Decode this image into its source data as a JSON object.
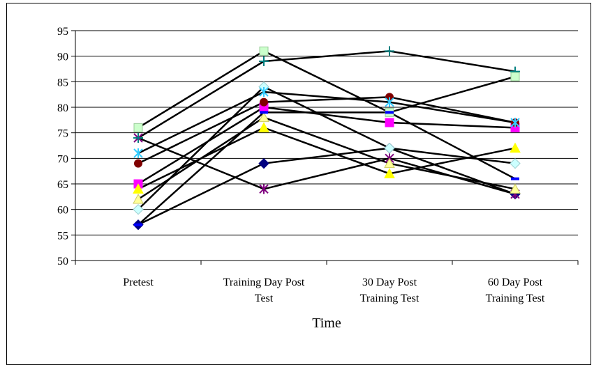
{
  "chart_data": {
    "type": "line",
    "title": "",
    "xlabel": "Time",
    "ylabel": "",
    "ylim": [
      50,
      95
    ],
    "yticks": [
      50,
      55,
      60,
      65,
      70,
      75,
      80,
      85,
      90,
      95
    ],
    "grid": "horizontal",
    "categories": [
      [
        "Pretest"
      ],
      [
        "Training Day Post",
        "Test"
      ],
      [
        "30 Day Post",
        "Training Test"
      ],
      [
        "60 Day Post",
        "Training Test"
      ]
    ],
    "series": [
      {
        "values": [
          57,
          69,
          72,
          63
        ],
        "color": "#000080",
        "marker": "diamond"
      },
      {
        "values": [
          65,
          80,
          77,
          76
        ],
        "color": "#ff00ff",
        "marker": "square"
      },
      {
        "values": [
          64,
          76,
          67,
          72
        ],
        "color": "#ffff00",
        "marker": "triangle"
      },
      {
        "values": [
          74,
          64,
          70,
          63
        ],
        "color": "#7f007f",
        "marker": "star"
      },
      {
        "values": [
          69,
          81,
          82,
          77
        ],
        "color": "#800000",
        "marker": "circle"
      },
      {
        "values": [
          74,
          89,
          91,
          87
        ],
        "color": "#008080",
        "marker": "plus"
      },
      {
        "values": [
          76,
          91,
          79,
          86
        ],
        "color": "#ccffcc",
        "marker": "square"
      },
      {
        "values": [
          60,
          84,
          72,
          69
        ],
        "color": "#ccffff",
        "marker": "diamond"
      },
      {
        "values": [
          71,
          83,
          81,
          77
        ],
        "color": "#33ccff",
        "marker": "star"
      },
      {
        "values": [
          62,
          78,
          69,
          64
        ],
        "color": "#ffff99",
        "marker": "triangle"
      },
      {
        "values": [
          57,
          79,
          79,
          66
        ],
        "color": "#0000ff",
        "marker": "dash"
      }
    ]
  }
}
